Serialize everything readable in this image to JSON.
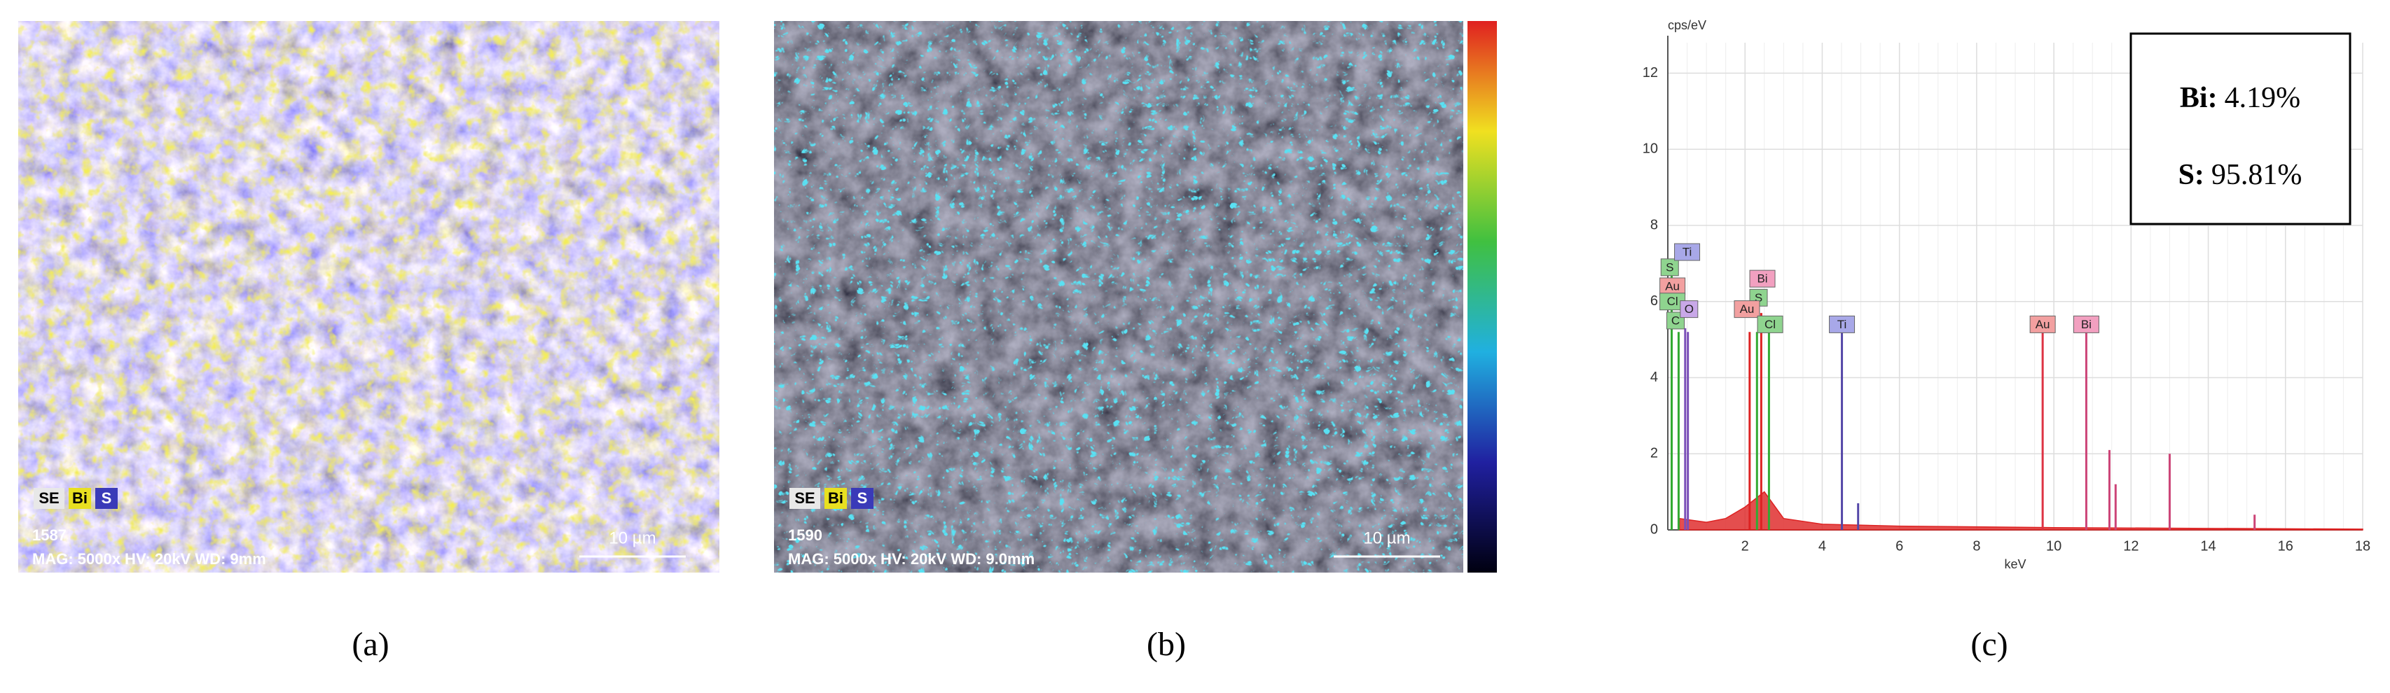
{
  "panels": [
    {
      "label": "(a)",
      "legend": [
        "SE",
        "Bi",
        "S"
      ],
      "id": "1587",
      "info": "MAG: 5000x  HV: 20kV  WD: 9mm",
      "scale": "10 µm"
    },
    {
      "label": "(b)",
      "legend": [
        "SE",
        "Bi",
        "S"
      ],
      "id": "1590",
      "info": "MAG: 5000x  HV: 20kV  WD: 9.0mm",
      "scale": "10 µm"
    }
  ],
  "chart_data": {
    "type": "stem",
    "label": "(c)",
    "y_label": "cps/eV",
    "x_label": "keV",
    "xlim": [
      0,
      18
    ],
    "ylim": [
      0,
      12.8
    ],
    "xticks": [
      2,
      4,
      6,
      8,
      10,
      12,
      14,
      16,
      18
    ],
    "yticks": [
      0,
      2,
      4,
      6,
      8,
      10,
      12
    ],
    "grid": true,
    "peaks": {
      "x": [
        0.1,
        0.28,
        0.45,
        0.52,
        2.12,
        2.31,
        2.42,
        2.62,
        4.51,
        4.93,
        9.71,
        10.84,
        11.44,
        11.6,
        13.0,
        15.2
      ],
      "values": [
        6.8,
        5.2,
        5.3,
        5.2,
        5.2,
        5.2,
        5.7,
        5.2,
        5.2,
        0.7,
        5.2,
        5.2,
        2.1,
        1.2,
        2.0,
        0.4
      ],
      "colors": [
        "#33aa33",
        "#33aa33",
        "#7b4fb8",
        "#7b4fb8",
        "#dd2222",
        "#33aa33",
        "#dd2222",
        "#33aa33",
        "#5548a8",
        "#5548a8",
        "#dd3344",
        "#cc4477",
        "#cc4477",
        "#cc4477",
        "#cc4477",
        "#cc4477"
      ]
    },
    "background": {
      "color": "#dd2222",
      "x": [
        0.3,
        1,
        1.5,
        2,
        2.5,
        3,
        4,
        6,
        8,
        10,
        14,
        18
      ],
      "values": [
        0.3,
        0.2,
        0.3,
        0.6,
        1,
        0.3,
        0.15,
        0.1,
        0.08,
        0.06,
        0.04,
        0.02
      ]
    },
    "annotations": [
      {
        "text": "S",
        "x": 0.05,
        "y": 6.9,
        "color": "#8fd48f"
      },
      {
        "text": "Au",
        "x": 0.12,
        "y": 6.4,
        "color": "#f2a0a0"
      },
      {
        "text": "Cl",
        "x": 0.12,
        "y": 6.0,
        "color": "#8fd48f"
      },
      {
        "text": "C",
        "x": 0.2,
        "y": 5.5,
        "color": "#8fd48f"
      },
      {
        "text": "O",
        "x": 0.55,
        "y": 5.8,
        "color": "#c9a8e8"
      },
      {
        "text": "Ti",
        "x": 0.5,
        "y": 7.3,
        "color": "#a8a8e8"
      },
      {
        "text": "Bi",
        "x": 2.45,
        "y": 6.6,
        "color": "#f2a0c0"
      },
      {
        "text": "S",
        "x": 2.35,
        "y": 6.1,
        "color": "#8fd48f"
      },
      {
        "text": "Au",
        "x": 2.05,
        "y": 5.8,
        "color": "#f2a0a0"
      },
      {
        "text": "Cl",
        "x": 2.65,
        "y": 5.4,
        "color": "#8fd48f"
      },
      {
        "text": "Ti",
        "x": 4.51,
        "y": 5.4,
        "color": "#a8a8e8"
      },
      {
        "text": "Au",
        "x": 9.71,
        "y": 5.4,
        "color": "#f2a0a0"
      },
      {
        "text": "Bi",
        "x": 10.84,
        "y": 5.4,
        "color": "#f2a0c0"
      }
    ],
    "composition": [
      {
        "element": "Bi:",
        "value": "4.19%"
      },
      {
        "element": "S:",
        "value": "95.81%"
      }
    ]
  }
}
